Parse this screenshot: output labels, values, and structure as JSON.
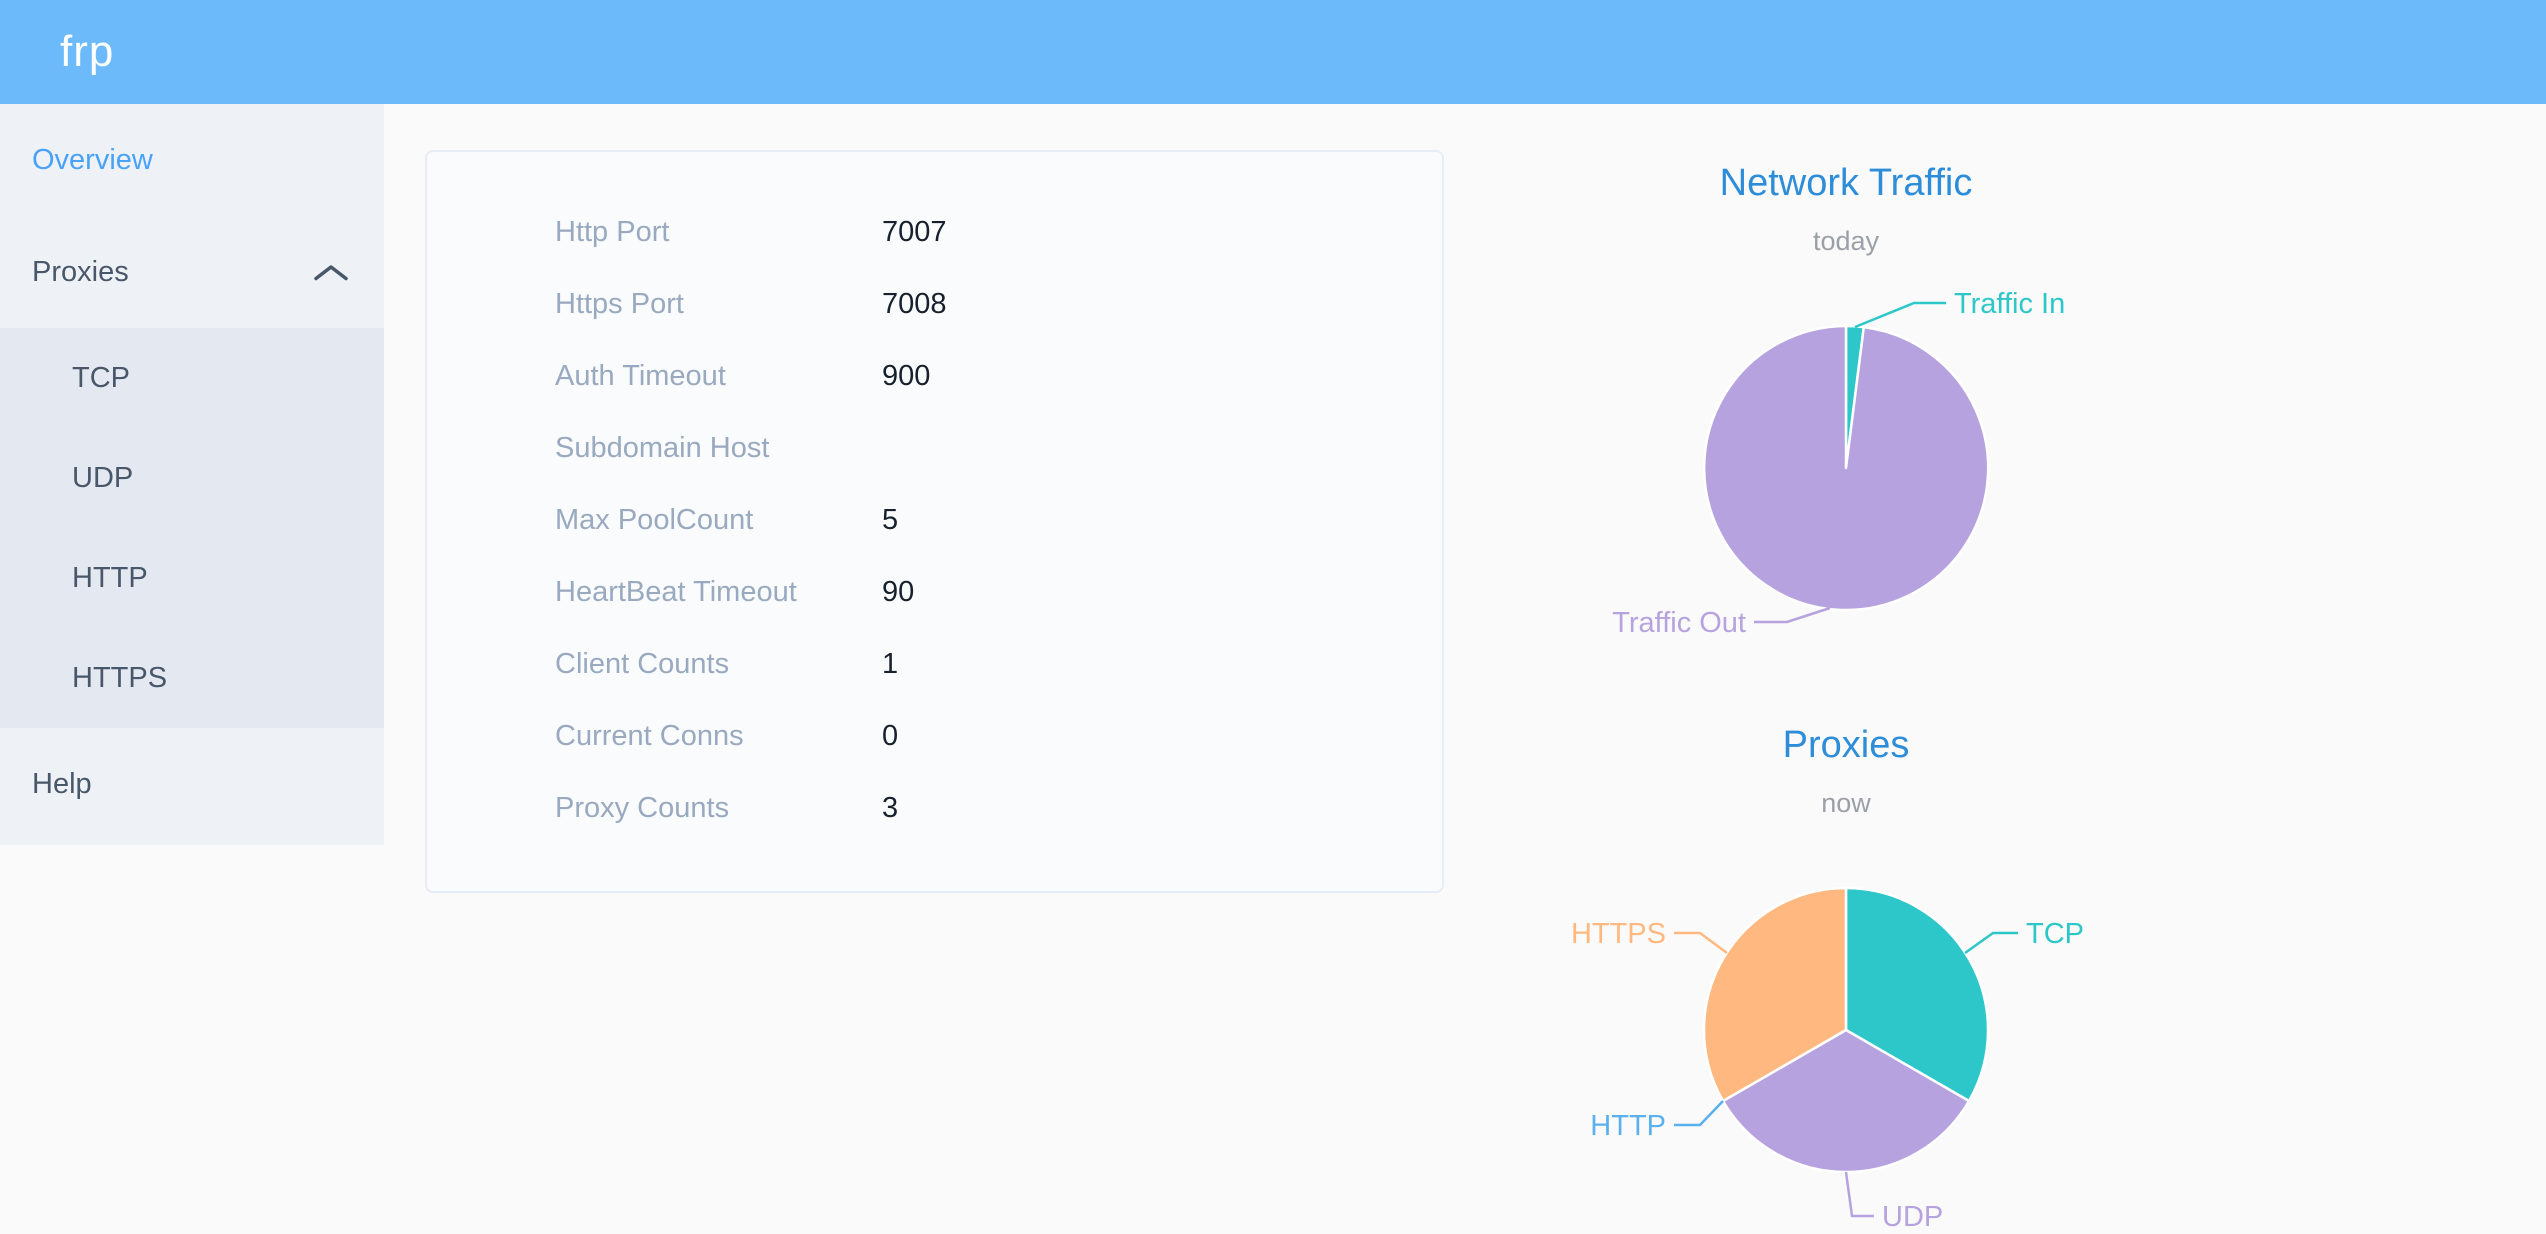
{
  "header": {
    "logo_text": "frp"
  },
  "sidebar": {
    "overview_label": "Overview",
    "proxies_label": "Proxies",
    "submenu": [
      "TCP",
      "UDP",
      "HTTP",
      "HTTPS"
    ],
    "help_label": "Help"
  },
  "server_info": {
    "rows": [
      {
        "label": "Http Port",
        "value": "7007"
      },
      {
        "label": "Https Port",
        "value": "7008"
      },
      {
        "label": "Auth Timeout",
        "value": "900"
      },
      {
        "label": "Subdomain Host",
        "value": ""
      },
      {
        "label": "Max PoolCount",
        "value": "5"
      },
      {
        "label": "HeartBeat Timeout",
        "value": "90"
      },
      {
        "label": "Client Counts",
        "value": "1"
      },
      {
        "label": "Current Conns",
        "value": "0"
      },
      {
        "label": "Proxy Counts",
        "value": "3"
      }
    ]
  },
  "chart_data": [
    {
      "type": "pie",
      "title": "Network Traffic",
      "subtitle": "today",
      "legend_position": "none",
      "value_unit": "percent (estimated from slice angles)",
      "series": [
        {
          "name": "Traffic In",
          "value": 2,
          "color": "#2ec7c9"
        },
        {
          "name": "Traffic Out",
          "value": 98,
          "color": "#b6a2de"
        }
      ]
    },
    {
      "type": "pie",
      "title": "Proxies",
      "subtitle": "now",
      "legend_position": "none",
      "value_unit": "proxy count (total matches Proxy Counts = 3)",
      "series": [
        {
          "name": "TCP",
          "value": 1,
          "color": "#2ec7c9"
        },
        {
          "name": "UDP",
          "value": 1,
          "color": "#b6a2de"
        },
        {
          "name": "HTTP",
          "value": 0,
          "color": "#5ab1ef"
        },
        {
          "name": "HTTPS",
          "value": 1,
          "color": "#ffb980"
        }
      ]
    }
  ],
  "colors": {
    "header_bg": "#6cbafa",
    "sidebar_bg": "#eef1f6",
    "submenu_bg": "#e4e8f1",
    "sidebar_text": "#48576a",
    "active_item": "#48a3f8",
    "chart_title": "#2d8dd8",
    "card_label": "#99a9bf",
    "card_value": "#17212e",
    "page_bg": "#fafafa"
  }
}
